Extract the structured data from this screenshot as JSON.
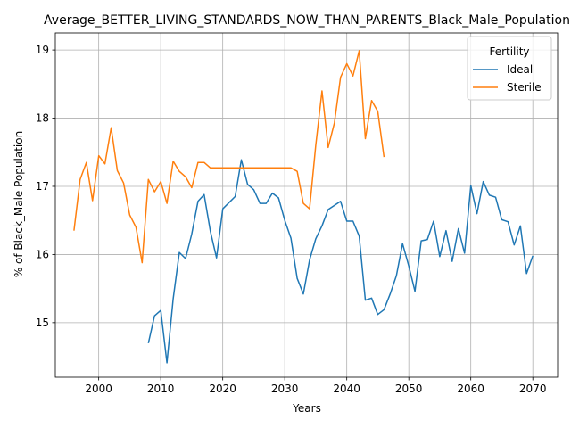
{
  "chart_data": {
    "type": "line",
    "title": "Average_BETTER_LIVING_STANDARDS_NOW_THAN_PARENTS_Black_Male_Population",
    "xlabel": "Years",
    "ylabel": "% of Black_Male Population",
    "xlim": [
      1993,
      2074
    ],
    "ylim": [
      14.2,
      19.25
    ],
    "xticks": [
      2000,
      2010,
      2020,
      2030,
      2040,
      2050,
      2060,
      2070
    ],
    "yticks": [
      15,
      16,
      17,
      18,
      19
    ],
    "grid": true,
    "legend": {
      "title": "Fertility",
      "placement": "top-right"
    },
    "series": [
      {
        "name": "Ideal",
        "color": "#1f77b4",
        "x": [
          2008,
          2009,
          2010,
          2011,
          2012,
          2013,
          2014,
          2015,
          2016,
          2017,
          2018,
          2019,
          2020,
          2021,
          2022,
          2023,
          2024,
          2025,
          2026,
          2027,
          2028,
          2029,
          2030,
          2031,
          2032,
          2033,
          2034,
          2035,
          2036,
          2037,
          2038,
          2039,
          2040,
          2041,
          2042,
          2043,
          2044,
          2045,
          2046,
          2047,
          2048,
          2049,
          2050,
          2051,
          2052,
          2053,
          2054,
          2055,
          2056,
          2057,
          2058,
          2059,
          2060,
          2061,
          2062,
          2063,
          2064,
          2065,
          2066,
          2067,
          2068,
          2069,
          2070
        ],
        "values": [
          14.7,
          15.1,
          15.18,
          14.41,
          15.35,
          16.03,
          15.94,
          16.3,
          16.78,
          16.88,
          16.34,
          15.95,
          16.67,
          16.76,
          16.85,
          17.39,
          17.03,
          16.95,
          16.75,
          16.75,
          16.9,
          16.83,
          16.5,
          16.24,
          15.65,
          15.42,
          15.92,
          16.23,
          16.42,
          16.66,
          16.72,
          16.78,
          16.49,
          16.49,
          16.27,
          15.33,
          15.36,
          15.12,
          15.19,
          15.42,
          15.69,
          16.16,
          15.83,
          15.46,
          16.2,
          16.22,
          16.49,
          15.97,
          16.35,
          15.9,
          16.38,
          16.02,
          17.01,
          16.6,
          17.07,
          16.87,
          16.84,
          16.51,
          16.48,
          16.14,
          16.42,
          15.72,
          15.98
        ]
      },
      {
        "name": "Sterile",
        "color": "#ff7f0e",
        "x": [
          1996,
          1997,
          1998,
          1999,
          2000,
          2001,
          2002,
          2003,
          2004,
          2005,
          2006,
          2007,
          2008,
          2009,
          2010,
          2011,
          2012,
          2013,
          2014,
          2015,
          2016,
          2017,
          2018,
          2019,
          2020,
          2021,
          2022,
          2023,
          2024,
          2025,
          2026,
          2027,
          2028,
          2029,
          2030,
          2031,
          2032,
          2033,
          2034,
          2035,
          2036,
          2037,
          2038,
          2039,
          2040,
          2041,
          2042,
          2043,
          2044,
          2045,
          2046
        ],
        "values": [
          16.35,
          17.1,
          17.35,
          16.79,
          17.45,
          17.33,
          17.86,
          17.23,
          17.05,
          16.58,
          16.4,
          15.88,
          17.1,
          16.92,
          17.07,
          16.75,
          17.37,
          17.22,
          17.14,
          16.98,
          17.35,
          17.35,
          17.27,
          17.27,
          17.27,
          17.27,
          17.27,
          17.27,
          17.27,
          17.27,
          17.27,
          17.27,
          17.27,
          17.27,
          17.27,
          17.27,
          17.22,
          16.75,
          16.67,
          17.6,
          18.4,
          17.57,
          17.93,
          18.6,
          18.8,
          18.62,
          18.99,
          17.7,
          18.26,
          18.1,
          17.43
        ]
      }
    ]
  }
}
